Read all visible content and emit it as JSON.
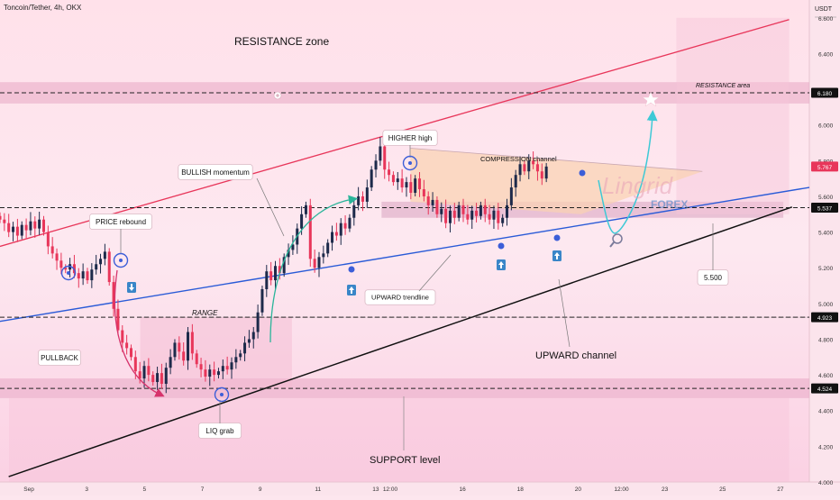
{
  "header": {
    "symbol_label": "Toncoin/Tether, 4h, OKX",
    "currency": "USDT"
  },
  "colors": {
    "background": "#fde6ee",
    "bull": "#1d2a4a",
    "bear": "#e8365a",
    "resistance_line": "#e8365a",
    "trendline": "#2a5bd7",
    "channel_line": "#111111",
    "projection": "#3dc9d6",
    "momentum_arrow": "#2bb59a",
    "pullback_arrow": "#d6336c"
  },
  "chart_data": {
    "type": "candlestick",
    "title": "Toncoin/Tether, 4h, OKX",
    "ylim": [
      4.0,
      6.7
    ],
    "y_ticks": [
      4.0,
      4.2,
      4.4,
      4.6,
      4.8,
      5.0,
      5.2,
      5.4,
      5.6,
      5.8,
      6.0,
      6.2,
      6.4,
      6.6
    ],
    "y_tick_labels": [
      "4.000",
      "4.200",
      "4.400",
      "4.600",
      "4.800",
      "5.000",
      "5.200",
      "5.400",
      "5.600",
      "5.800",
      "6.000",
      "6.200",
      "6.400",
      "6.600"
    ],
    "x_range": [
      0.0,
      28.0
    ],
    "x_ticks": [
      {
        "x": 1.0,
        "label": "Sep"
      },
      {
        "x": 3.0,
        "label": "3"
      },
      {
        "x": 5.0,
        "label": "5"
      },
      {
        "x": 7.0,
        "label": "7"
      },
      {
        "x": 9.0,
        "label": "9"
      },
      {
        "x": 11.0,
        "label": "11"
      },
      {
        "x": 13.0,
        "label": "13"
      },
      {
        "x": 13.5,
        "label": "12:00"
      },
      {
        "x": 16.0,
        "label": "16"
      },
      {
        "x": 18.0,
        "label": "18"
      },
      {
        "x": 20.0,
        "label": "20"
      },
      {
        "x": 21.5,
        "label": "12:00"
      },
      {
        "x": 23.0,
        "label": "23"
      },
      {
        "x": 25.0,
        "label": "25"
      },
      {
        "x": 27.0,
        "label": "27"
      }
    ],
    "closes": [
      5.47,
      5.45,
      5.4,
      5.43,
      5.38,
      5.44,
      5.41,
      5.46,
      5.42,
      5.47,
      5.4,
      5.32,
      5.28,
      5.24,
      5.2,
      5.19,
      5.22,
      5.17,
      5.14,
      5.18,
      5.13,
      5.19,
      5.22,
      5.25,
      5.29,
      5.12,
      4.97,
      4.85,
      4.78,
      4.75,
      4.7,
      4.62,
      4.58,
      4.65,
      4.6,
      4.56,
      4.61,
      4.55,
      4.64,
      4.7,
      4.78,
      4.73,
      4.68,
      4.84,
      4.72,
      4.66,
      4.63,
      4.59,
      4.63,
      4.6,
      4.62,
      4.65,
      4.63,
      4.67,
      4.7,
      4.72,
      4.78,
      4.8,
      4.84,
      4.95,
      5.08,
      5.18,
      5.13,
      5.21,
      5.17,
      5.26,
      5.3,
      5.33,
      5.42,
      5.5,
      5.55,
      5.25,
      5.2,
      5.26,
      5.28,
      5.34,
      5.4,
      5.38,
      5.45,
      5.42,
      5.48,
      5.55,
      5.6,
      5.57,
      5.65,
      5.75,
      5.8,
      5.88,
      5.75,
      5.72,
      5.68,
      5.7,
      5.65,
      5.68,
      5.62,
      5.7,
      5.64,
      5.6,
      5.55,
      5.58,
      5.5,
      5.53,
      5.45,
      5.52,
      5.48,
      5.55,
      5.5,
      5.47,
      5.52,
      5.49,
      5.55,
      5.5,
      5.47,
      5.52,
      5.45,
      5.48,
      5.55,
      5.65,
      5.72,
      5.78,
      5.74,
      5.8,
      5.78,
      5.74,
      5.7,
      5.767
    ],
    "levels": [
      {
        "price": 6.18,
        "label": "6.180"
      },
      {
        "price": 5.537,
        "label": "5.537"
      },
      {
        "price": 4.923,
        "label": "4.923"
      },
      {
        "price": 4.524,
        "label": "4.524"
      }
    ],
    "current_price": {
      "price": 5.767,
      "label": "5.767"
    },
    "target_label": "5.500",
    "annotations": {
      "resistance_zone": "RESISTANCE zone",
      "resistance_area": "RESISTANCE area",
      "higher_high": "HIGHER high",
      "compression_channel": "COMPRESSION channel",
      "bullish_momentum": "BULLISH momentum",
      "price_rebound": "PRICE rebound",
      "range": "RANGE",
      "pullback": "PULLBACK",
      "upward_trendline": "UPWARD trendline",
      "upward_channel": "UPWARD channel",
      "liq_grab": "LIQ grab",
      "support_level": "SUPPORT level"
    }
  },
  "watermark": {
    "name": "Lingrid",
    "sub": "FOREX"
  }
}
